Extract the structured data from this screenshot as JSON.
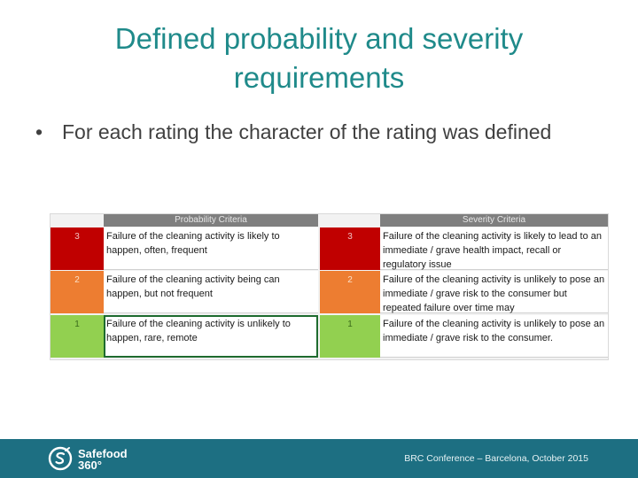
{
  "slide": {
    "title": "Defined probability and severity requirements",
    "bullet_marker": "•",
    "bullet_text": "For each rating the character of the rating was defined"
  },
  "table": {
    "probability_header": "Probability Criteria",
    "severity_header": "Severity Criteria",
    "rows": [
      {
        "rating": "3",
        "probability": "Failure of the cleaning activity is likely to happen, often, frequent",
        "severity": "Failure of the cleaning activity  is likely to lead to an immediate / grave health impact, recall or regulatory issue"
      },
      {
        "rating": "2",
        "probability": "Failure of the cleaning activity being can happen, but not frequent",
        "severity": "Failure of the cleaning activity is unlikely to pose an immediate / grave risk to the consumer but repeated failure over time may"
      },
      {
        "rating": "1",
        "probability": "Failure of the cleaning activity is unlikely to happen, rare, remote",
        "severity": "Failure of the cleaning activity is unlikely to pose an immediate / grave risk to the consumer."
      }
    ],
    "colors": {
      "high": "#c00000",
      "medium": "#ed7d31",
      "low": "#92d050"
    }
  },
  "footer": {
    "logo_line1": "Safefood",
    "logo_line2": "360°",
    "conference": "BRC Conference – Barcelona,  October 2015",
    "background": "#1d6f82"
  }
}
